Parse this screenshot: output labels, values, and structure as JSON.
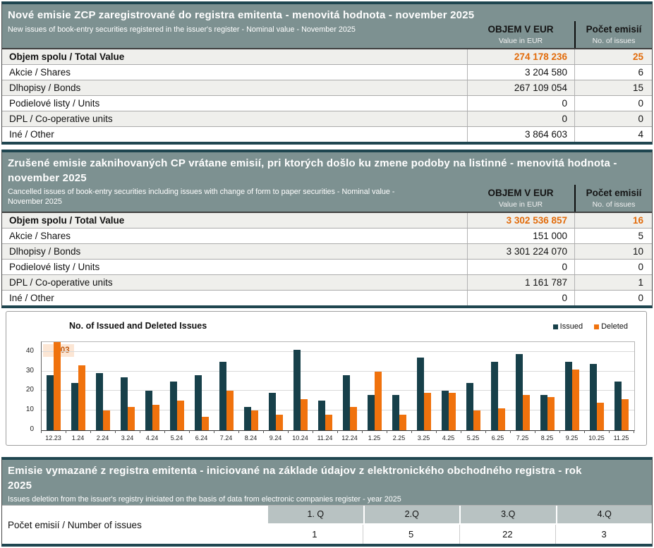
{
  "colors": {
    "header_bg": "#7D9191",
    "dark_border": "#1F4650",
    "accent_orange": "#E26B0A",
    "bar_teal": "#17404A",
    "bar_orange": "#F0720D",
    "row_stripe": "#EFEFEC",
    "quarter_header_bg": "#B8C2C2",
    "callout_bg": "#FCE6D4",
    "callout_text": "#C05A11"
  },
  "table1": {
    "title": "Nové emisie ZCP zaregistrované do registra emitenta - menovitá hodnota - november 2025",
    "subtitle": "New issues of book-entry securities registered in the issuer's register - Nominal value - November 2025",
    "col_value_header": "OBJEM V EUR",
    "col_value_sub": "Value in EUR",
    "col_count_header": "Počet emisií",
    "col_count_sub": "No. of issues",
    "rows": [
      {
        "label": "Objem spolu / Total Value",
        "value": "274 178 236",
        "count": "25",
        "is_total": true
      },
      {
        "label": "Akcie / Shares",
        "value": "3 204 580",
        "count": "6"
      },
      {
        "label": "Dlhopisy / Bonds",
        "value": "267 109 054",
        "count": "15"
      },
      {
        "label": "Podielové listy / Units",
        "value": "0",
        "count": "0"
      },
      {
        "label": "DPL / Co-operative units",
        "value": "0",
        "count": "0"
      },
      {
        "label": "Iné / Other",
        "value": "3 864 603",
        "count": "4"
      }
    ]
  },
  "table2": {
    "title": "Zrušené emisie zaknihovaných CP vrátane emisií, pri ktorých došlo ku zmene podoby na listinné - menovitá hodnota - november 2025",
    "subtitle": "Cancelled issues of book-entry securities including issues with change of form to paper securities - Nominal value - November 2025",
    "col_value_header": "OBJEM V EUR",
    "col_value_sub": "Value in EUR",
    "col_count_header": "Počet emisií",
    "col_count_sub": "No. of issues",
    "rows": [
      {
        "label": "Objem spolu / Total Value",
        "value": "3 302 536 857",
        "count": "16",
        "is_total": true
      },
      {
        "label": "Akcie / Shares",
        "value": "151 000",
        "count": "5"
      },
      {
        "label": "Dlhopisy / Bonds",
        "value": "3 301 224 070",
        "count": "10"
      },
      {
        "label": "Podielové listy / Units",
        "value": "0",
        "count": "0"
      },
      {
        "label": "DPL / Co-operative units",
        "value": "1 161 787",
        "count": "1"
      },
      {
        "label": "Iné / Other",
        "value": "0",
        "count": "0"
      }
    ]
  },
  "chart_data": {
    "type": "bar",
    "title": "No. of Issued and Deleted Issues",
    "categories": [
      "12.23",
      "1.24",
      "2.24",
      "3.24",
      "4.24",
      "5.24",
      "6.24",
      "7.24",
      "8.24",
      "9.24",
      "10.24",
      "11.24",
      "12.24",
      "1.25",
      "2.25",
      "3.25",
      "4.25",
      "5.25",
      "6.25",
      "7.25",
      "8.25",
      "9.25",
      "10.25",
      "11.25"
    ],
    "series": [
      {
        "name": "Issued",
        "color": "#17404A",
        "values": [
          28,
          24,
          29,
          27,
          20,
          25,
          28,
          35,
          12,
          19,
          41,
          15,
          28,
          18,
          18,
          37,
          20,
          24,
          35,
          39,
          18,
          35,
          34,
          25
        ]
      },
      {
        "name": "Deleted",
        "color": "#F0720D",
        "values": [
          103,
          33,
          10,
          12,
          13,
          15,
          7,
          20,
          10,
          8,
          16,
          8,
          12,
          30,
          8,
          19,
          19,
          10,
          11,
          18,
          17,
          31,
          14,
          16
        ]
      }
    ],
    "ylim": [
      0,
      45
    ],
    "yticks": [
      0,
      10,
      20,
      30,
      40
    ],
    "grid": true,
    "legend_position": "top-right",
    "annotation": {
      "text": "103",
      "category": "12.23",
      "series": "Deleted",
      "value": 103,
      "note": "bar clipped at axis maximum"
    }
  },
  "table3": {
    "title": "Emisie vymazané z registra emitenta - iniciované na základe údajov z elektronického obchodného registra - rok 2025",
    "subtitle": "Issues deletion from the issuer's registry iniciated on the basis of data from electronic companies register - year 2025",
    "row_label": "Počet emisií / Number of issues",
    "quarters": [
      "1. Q",
      "2.Q",
      "3.Q",
      "4.Q"
    ],
    "values": [
      "1",
      "5",
      "22",
      "3"
    ]
  }
}
